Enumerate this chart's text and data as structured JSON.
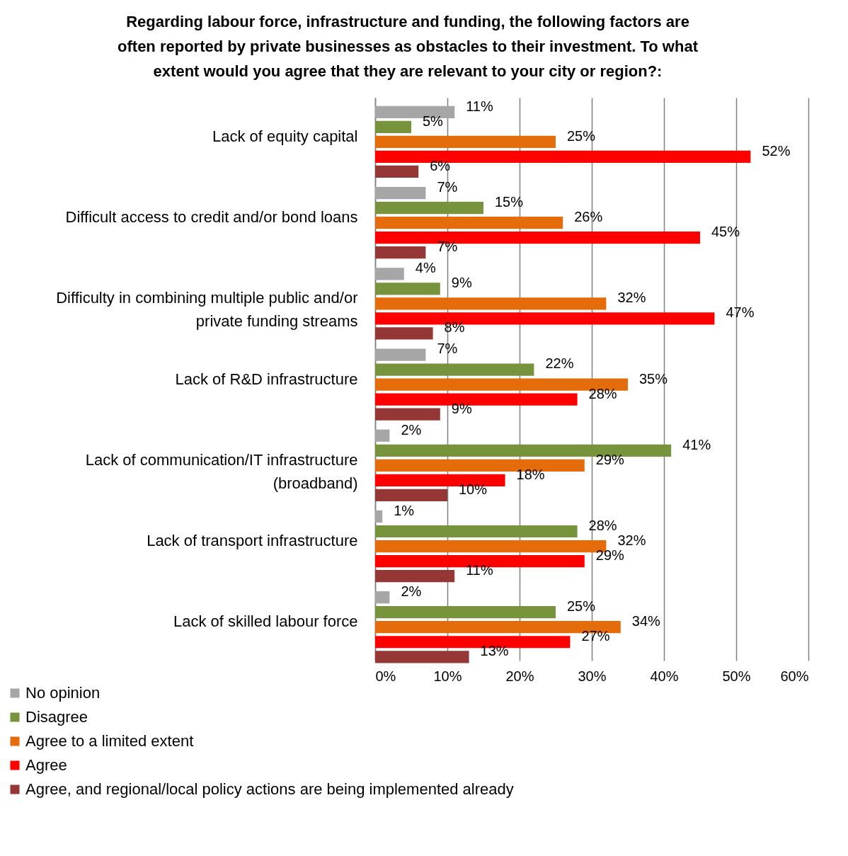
{
  "chart_data": {
    "type": "bar",
    "orientation": "horizontal",
    "title": "Regarding labour force, infrastructure and funding, the following factors are often reported by private businesses as obstacles to their investment. To what extent would you agree that they are relevant to your city or region?:",
    "categories": [
      "Lack of equity capital",
      "Difficult access to credit and/or bond loans",
      "Difficulty in combining multiple public and/or private funding streams",
      "Lack of R&D infrastructure",
      "Lack of communication/IT infrastructure (broadband)",
      "Lack of transport infrastructure",
      "Lack of skilled labour force"
    ],
    "series": [
      {
        "name": "No opinion",
        "color": "#a6a6a6",
        "values": [
          11,
          7,
          4,
          7,
          2,
          1,
          2
        ],
        "value_labels": [
          "11%",
          "7%",
          "4%",
          "7%",
          "2%",
          "1%",
          "2%"
        ]
      },
      {
        "name": "Disagree",
        "color": "#77933c",
        "values": [
          5,
          15,
          9,
          22,
          41,
          28,
          25
        ],
        "value_labels": [
          "5%",
          "15%",
          "9%",
          "22%",
          "41%",
          "28%",
          "25%"
        ]
      },
      {
        "name": "Agree to a limited extent",
        "color": "#e46c0a",
        "values": [
          25,
          26,
          32,
          35,
          29,
          32,
          34
        ],
        "value_labels": [
          "25%",
          "26%",
          "32%",
          "35%",
          "29%",
          "32%",
          "34%"
        ]
      },
      {
        "name": "Agree",
        "color": "#ff0000",
        "values": [
          52,
          45,
          47,
          28,
          18,
          29,
          27
        ],
        "value_labels": [
          "52%",
          "45%",
          "47%",
          "28%",
          "18%",
          "29%",
          "27%"
        ]
      },
      {
        "name": "Agree, and regional/local policy actions are being implemented already",
        "color": "#953735",
        "values": [
          6,
          7,
          8,
          9,
          10,
          11,
          13
        ],
        "value_labels": [
          "6%",
          "7%",
          "8%",
          "9%",
          "10%",
          "11%",
          "13%"
        ]
      }
    ],
    "xlim": [
      0,
      60
    ],
    "xticks": [
      {
        "value": 0,
        "label": "0%"
      },
      {
        "value": 10,
        "label": "10%"
      },
      {
        "value": 20,
        "label": "20%"
      },
      {
        "value": 30,
        "label": "30%"
      },
      {
        "value": 40,
        "label": "40%"
      },
      {
        "value": 50,
        "label": "50%"
      },
      {
        "value": 60,
        "label": "60%"
      }
    ],
    "grid": "x",
    "legend": "bottom left"
  }
}
